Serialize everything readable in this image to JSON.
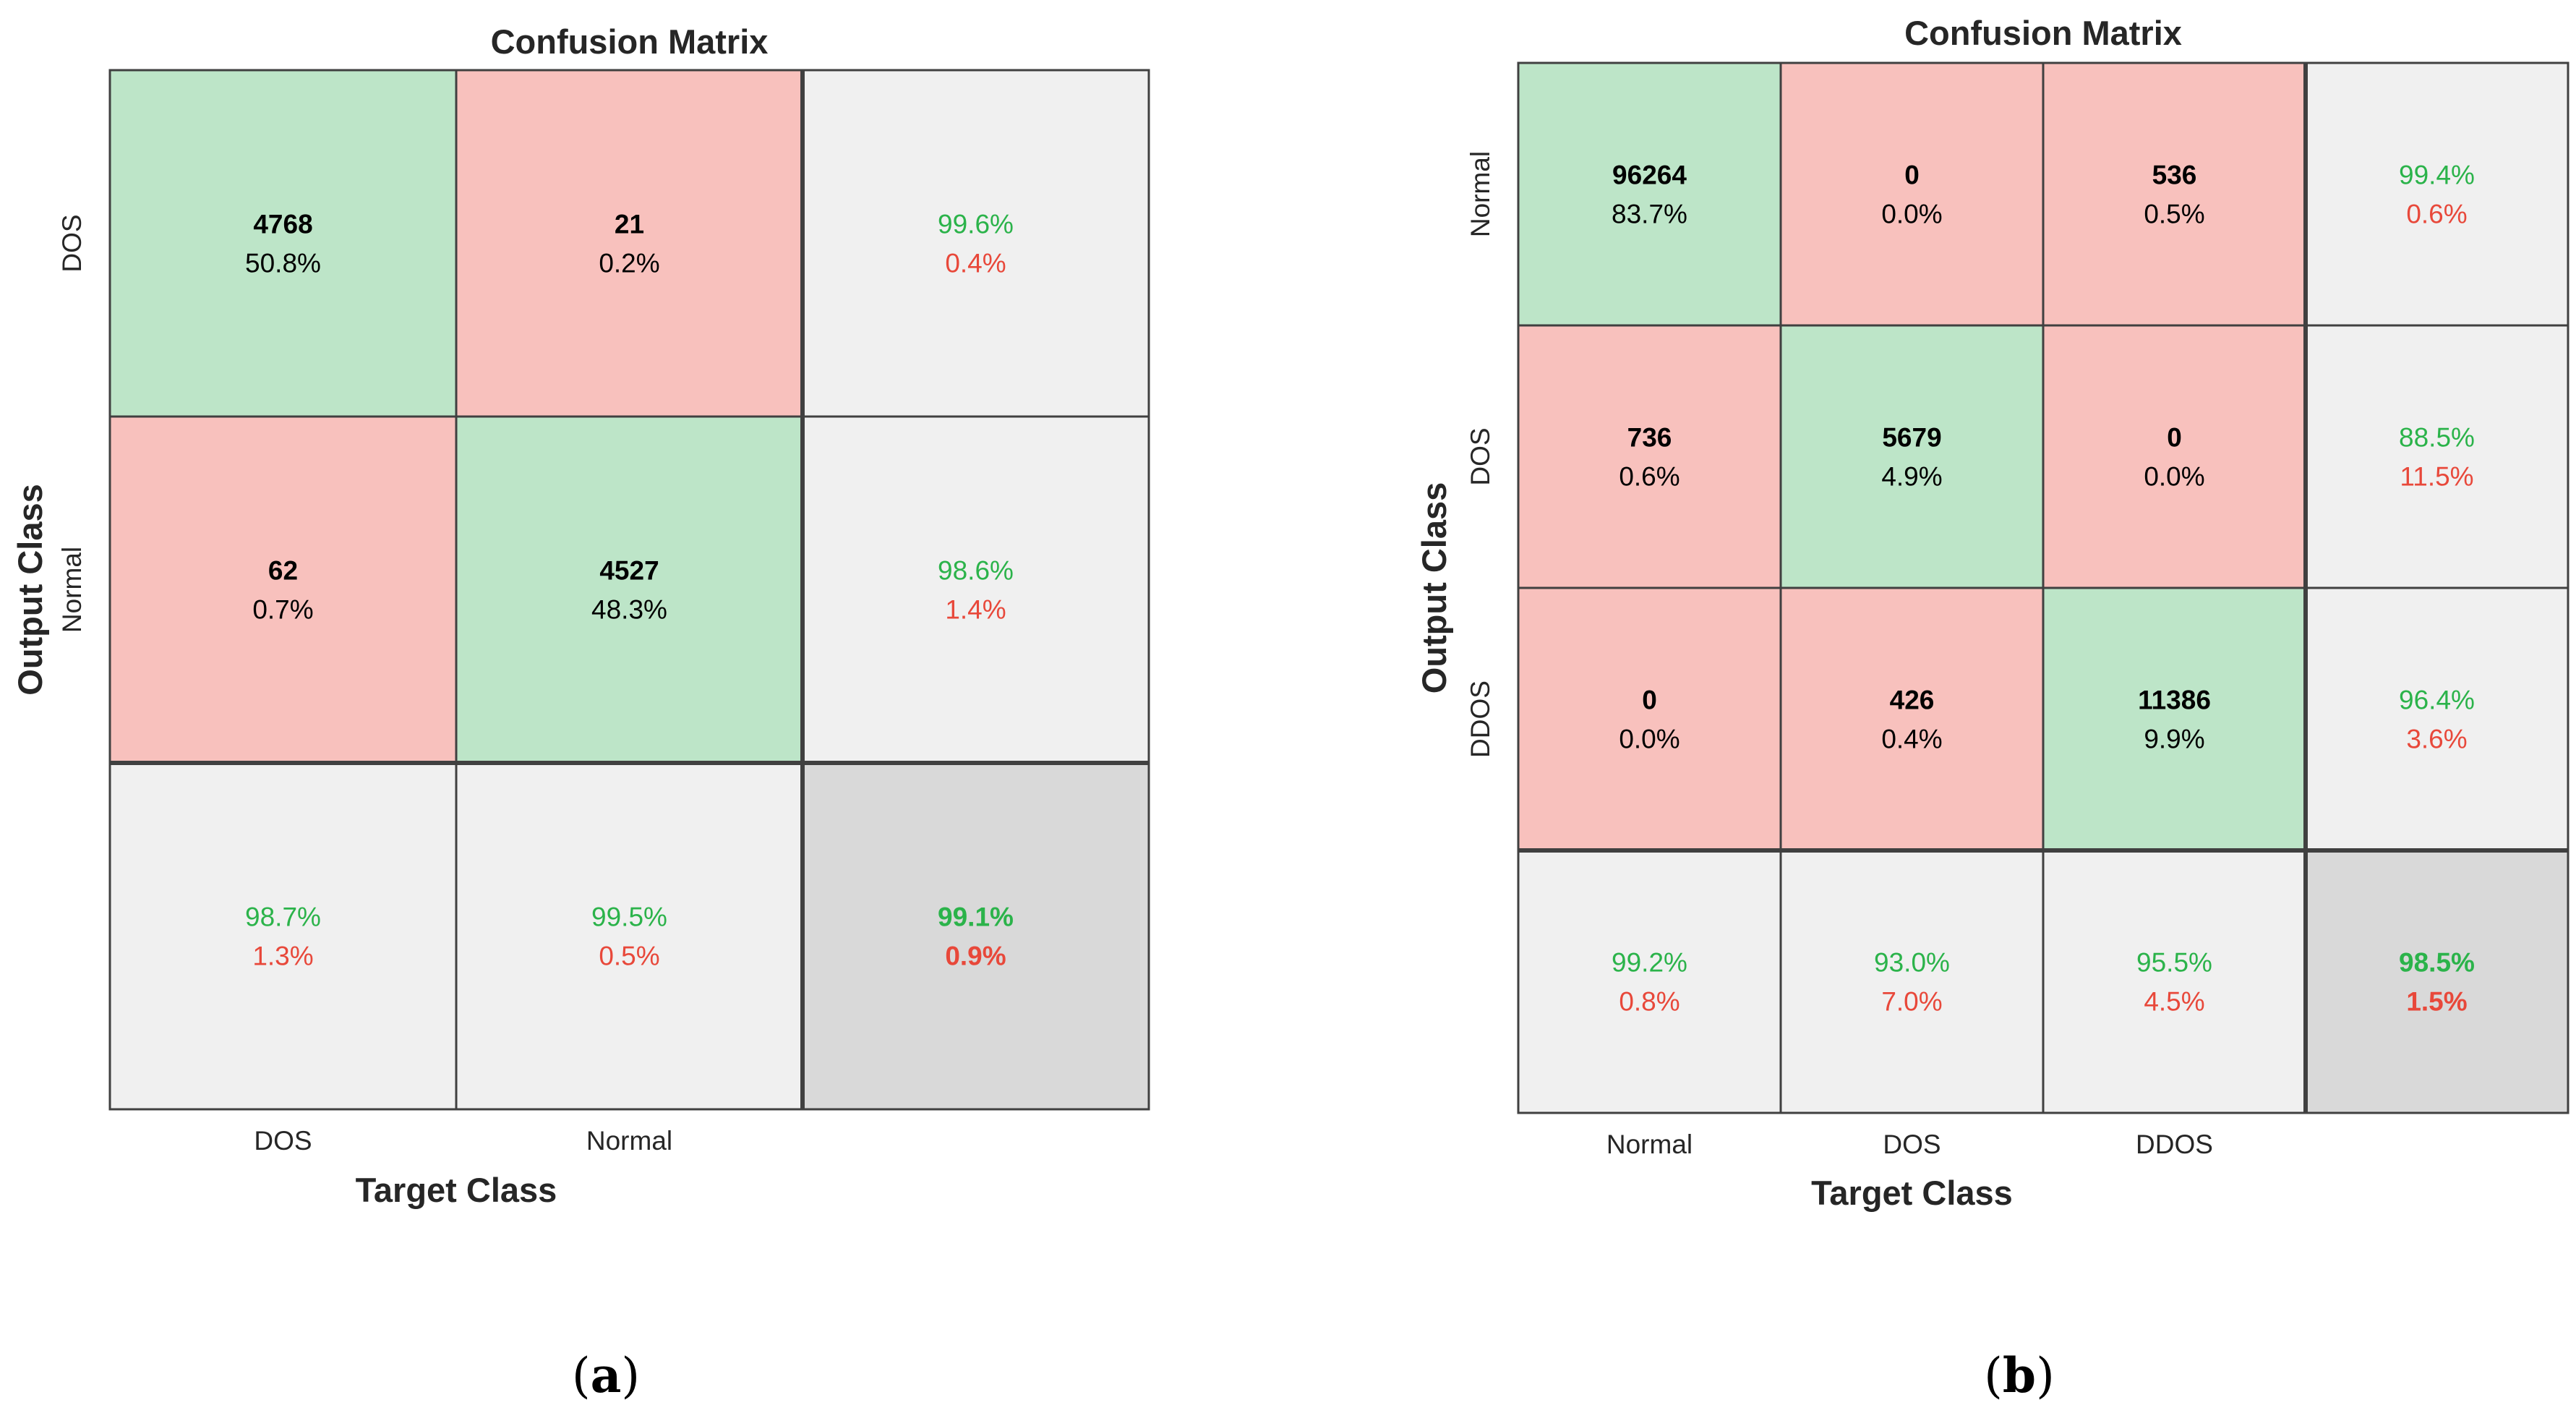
{
  "colors": {
    "correct_fill": "#bde5c8",
    "error_fill": "#f8c1bd",
    "summary_fill": "#f0f0f0",
    "overall_fill": "#d9d9d9",
    "grid": "#404040",
    "good_text": "#2bb34a",
    "bad_text": "#e8483a"
  },
  "chart_data": [
    {
      "type": "table",
      "panel_caption": "a",
      "title": "Confusion Matrix",
      "ylabel": "Output Class",
      "xlabel": "Target Class",
      "output_classes": [
        "DOS",
        "Normal"
      ],
      "target_classes": [
        "DOS",
        "Normal"
      ],
      "counts": [
        [
          4768,
          21
        ],
        [
          62,
          4527
        ]
      ],
      "cell_percents": [
        [
          "50.8%",
          "0.2%"
        ],
        [
          "0.7%",
          "48.3%"
        ]
      ],
      "row_summary": [
        [
          "99.6%",
          "0.4%"
        ],
        [
          "98.6%",
          "1.4%"
        ]
      ],
      "col_summary": [
        [
          "98.7%",
          "1.3%"
        ],
        [
          "99.5%",
          "0.5%"
        ]
      ],
      "overall": [
        "99.1%",
        "0.9%"
      ]
    },
    {
      "type": "table",
      "panel_caption": "b",
      "title": "Confusion Matrix",
      "ylabel": "Output Class",
      "xlabel": "Target Class",
      "output_classes": [
        "Normal",
        "DOS",
        "DDOS"
      ],
      "target_classes": [
        "Normal",
        "DOS",
        "DDOS"
      ],
      "counts": [
        [
          96264,
          0,
          536
        ],
        [
          736,
          5679,
          0
        ],
        [
          0,
          426,
          11386
        ]
      ],
      "cell_percents": [
        [
          "83.7%",
          "0.0%",
          "0.5%"
        ],
        [
          "0.6%",
          "4.9%",
          "0.0%"
        ],
        [
          "0.0%",
          "0.4%",
          "9.9%"
        ]
      ],
      "row_summary": [
        [
          "99.4%",
          "0.6%"
        ],
        [
          "88.5%",
          "11.5%"
        ],
        [
          "96.4%",
          "3.6%"
        ]
      ],
      "col_summary": [
        [
          "99.2%",
          "0.8%"
        ],
        [
          "93.0%",
          "7.0%"
        ],
        [
          "95.5%",
          "4.5%"
        ]
      ],
      "overall": [
        "98.5%",
        "1.5%"
      ]
    }
  ]
}
